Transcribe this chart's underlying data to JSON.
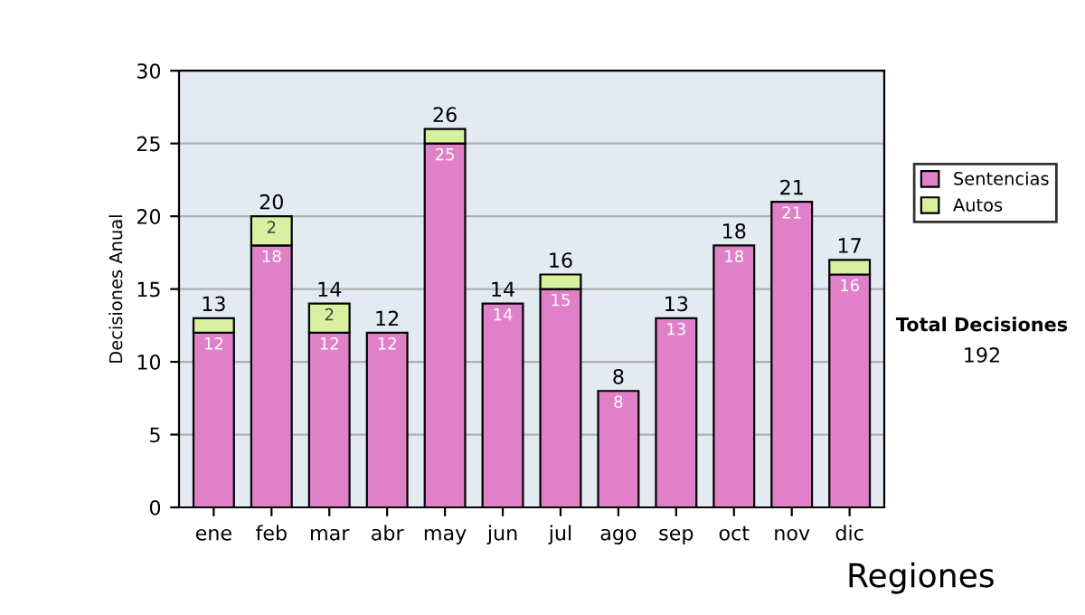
{
  "chart_data": {
    "type": "bar",
    "stacked": true,
    "ylabel": "Decisiones Anual",
    "categories": [
      "ene",
      "feb",
      "mar",
      "abr",
      "may",
      "jun",
      "jul",
      "ago",
      "sep",
      "oct",
      "nov",
      "dic"
    ],
    "series": [
      {
        "name": "Sentencias",
        "color": "#e080c8",
        "values": [
          12,
          18,
          12,
          12,
          25,
          14,
          15,
          8,
          13,
          18,
          21,
          16
        ],
        "value_labels": [
          "12",
          "18",
          "12",
          "12",
          "25",
          "14",
          "15",
          "8",
          "13",
          "18",
          "21",
          "16"
        ]
      },
      {
        "name": "Autos",
        "color": "#d8f0a0",
        "values": [
          1,
          2,
          2,
          null,
          1,
          null,
          1,
          null,
          null,
          null,
          null,
          1
        ],
        "value_labels": [
          null,
          "2",
          "2",
          null,
          null,
          null,
          null,
          null,
          null,
          null,
          null,
          null
        ]
      }
    ],
    "totals": [
      "13",
      "20",
      "14",
      "12",
      "26",
      "14",
      "16",
      "8",
      "13",
      "18",
      "21",
      "17"
    ],
    "ylim": [
      0,
      30
    ],
    "yticks": [
      0,
      5,
      10,
      15,
      20,
      25,
      30
    ],
    "grid": "y",
    "legend": "right",
    "annotations": [
      "Total Decisiones",
      "192",
      "Regiones"
    ]
  }
}
